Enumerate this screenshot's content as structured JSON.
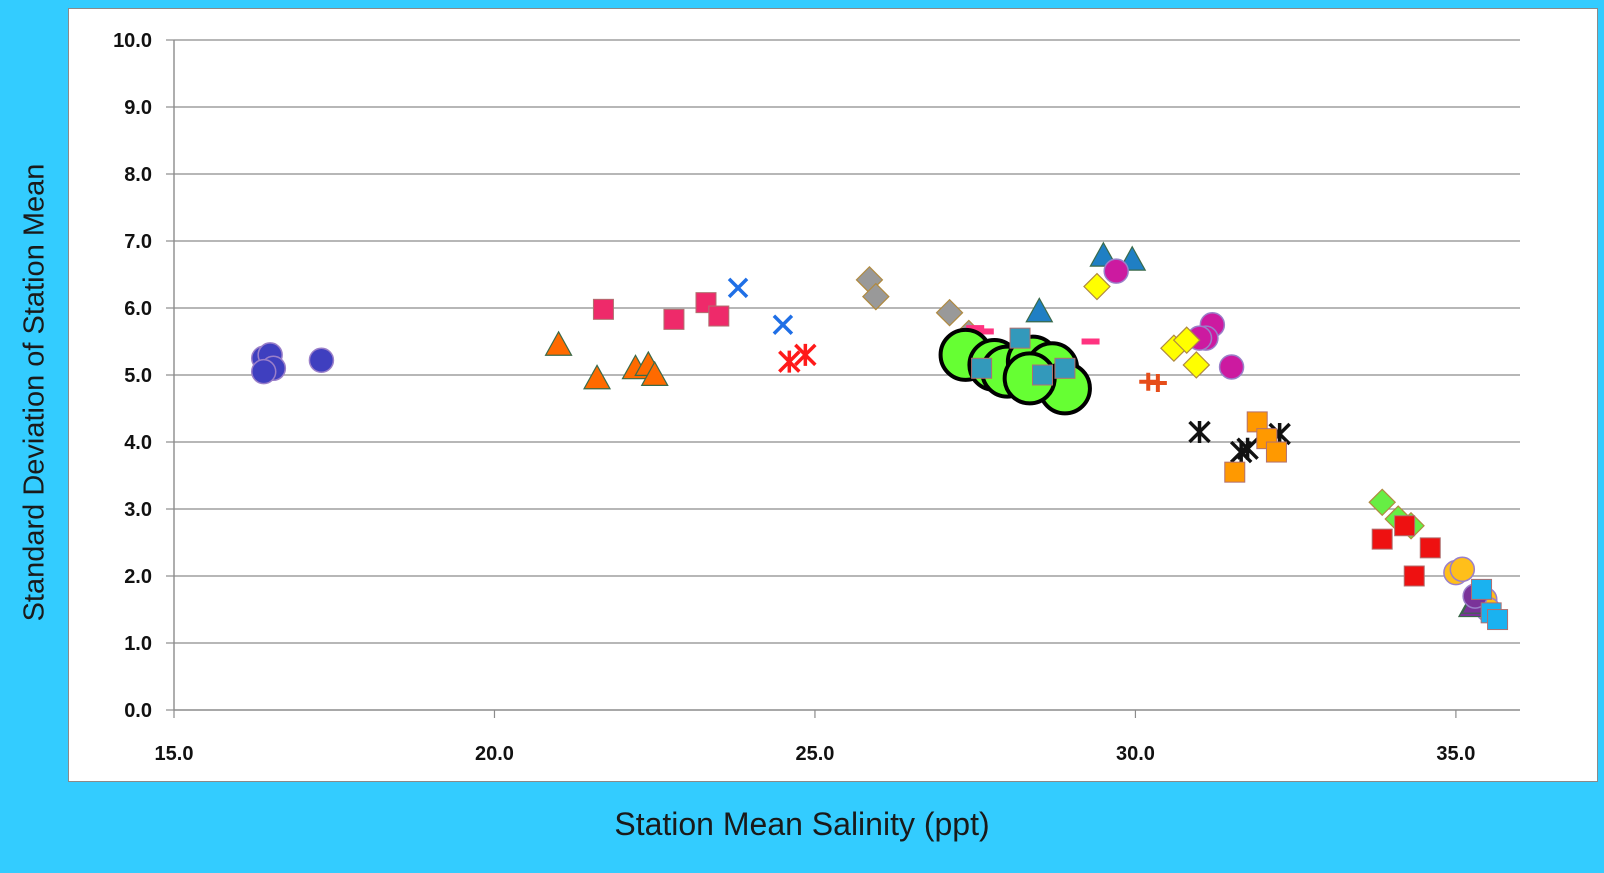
{
  "chart_data": {
    "type": "scatter",
    "title": "",
    "xlabel": "Station Mean Salinity (ppt)",
    "ylabel": "Standard Deviation of Station Mean",
    "xlim": [
      15,
      36
    ],
    "ylim": [
      0,
      10
    ],
    "x_ticks": [
      "15.0",
      "20.0",
      "25.0",
      "30.0",
      "35.0"
    ],
    "y_ticks": [
      "0.0",
      "1.0",
      "2.0",
      "3.0",
      "4.0",
      "5.0",
      "6.0",
      "7.0",
      "8.0",
      "9.0",
      "10.0"
    ],
    "grid": "horizontal",
    "legend": "none",
    "series": [
      {
        "marker": "circle",
        "color": "#3f3fbf",
        "points": [
          [
            16.4,
            5.25
          ],
          [
            16.5,
            5.3
          ],
          [
            16.55,
            5.1
          ],
          [
            16.4,
            5.05
          ],
          [
            17.3,
            5.22
          ]
        ]
      },
      {
        "marker": "triangle",
        "color": "#ff6a00",
        "points": [
          [
            21.0,
            5.45
          ],
          [
            21.6,
            4.95
          ],
          [
            22.2,
            5.1
          ],
          [
            22.4,
            5.15
          ],
          [
            22.5,
            5.0
          ]
        ]
      },
      {
        "marker": "square",
        "color": "#ee2a6a",
        "points": [
          [
            21.7,
            5.98
          ],
          [
            22.8,
            5.83
          ],
          [
            23.3,
            6.08
          ],
          [
            23.5,
            5.88
          ]
        ]
      },
      {
        "marker": "x",
        "color": "#1f6fe6",
        "points": [
          [
            23.8,
            6.3
          ],
          [
            24.5,
            5.75
          ]
        ]
      },
      {
        "marker": "asterisk",
        "color": "#ff1a1a",
        "points": [
          [
            24.6,
            5.2
          ],
          [
            24.85,
            5.3
          ]
        ]
      },
      {
        "marker": "diamond",
        "color": "#999999",
        "points": [
          [
            25.85,
            6.42
          ],
          [
            25.95,
            6.17
          ],
          [
            27.1,
            5.93
          ],
          [
            27.4,
            5.62
          ]
        ]
      },
      {
        "marker": "dash",
        "color": "#ff3380",
        "points": [
          [
            27.5,
            5.7
          ],
          [
            27.65,
            5.65
          ],
          [
            28.3,
            5.55
          ],
          [
            29.3,
            5.5
          ]
        ]
      },
      {
        "marker": "circle-large",
        "color": "#66ff33",
        "points": [
          [
            27.35,
            5.3
          ],
          [
            27.8,
            5.15
          ],
          [
            28.0,
            5.05
          ],
          [
            28.4,
            5.2
          ],
          [
            28.7,
            5.1
          ],
          [
            28.9,
            4.8
          ],
          [
            28.35,
            4.95
          ]
        ]
      },
      {
        "marker": "square",
        "color": "#3399bb",
        "points": [
          [
            27.6,
            5.1
          ],
          [
            28.2,
            5.55
          ],
          [
            28.55,
            5.0
          ],
          [
            28.9,
            5.1
          ]
        ]
      },
      {
        "marker": "triangle",
        "color": "#1f7fc4",
        "points": [
          [
            28.5,
            5.95
          ],
          [
            29.5,
            6.78
          ],
          [
            29.95,
            6.72
          ]
        ]
      },
      {
        "marker": "circle",
        "color": "#cc1aa0",
        "points": [
          [
            29.7,
            6.55
          ],
          [
            31.2,
            5.75
          ],
          [
            31.1,
            5.55
          ],
          [
            31.0,
            5.55
          ],
          [
            31.5,
            5.12
          ]
        ]
      },
      {
        "marker": "diamond",
        "color": "#ffff00",
        "points": [
          [
            29.4,
            6.32
          ],
          [
            30.6,
            5.4
          ],
          [
            30.8,
            5.52
          ],
          [
            30.95,
            5.15
          ]
        ]
      },
      {
        "marker": "plus",
        "color": "#e64d1a",
        "points": [
          [
            30.2,
            4.9
          ],
          [
            30.35,
            4.88
          ]
        ]
      },
      {
        "marker": "asterisk",
        "color": "#111111",
        "points": [
          [
            31.0,
            4.15
          ],
          [
            31.65,
            3.85
          ],
          [
            31.75,
            3.9
          ],
          [
            32.25,
            4.12
          ]
        ]
      },
      {
        "marker": "square",
        "color": "#ff9900",
        "points": [
          [
            31.55,
            3.55
          ],
          [
            31.9,
            4.3
          ],
          [
            32.05,
            4.05
          ],
          [
            32.2,
            3.85
          ]
        ]
      },
      {
        "marker": "diamond",
        "color": "#66ee44",
        "points": [
          [
            33.85,
            3.1
          ],
          [
            34.1,
            2.85
          ],
          [
            34.3,
            2.75
          ]
        ]
      },
      {
        "marker": "square",
        "color": "#ee1111",
        "points": [
          [
            33.85,
            2.55
          ],
          [
            34.2,
            2.75
          ],
          [
            34.35,
            2.0
          ],
          [
            34.6,
            2.42
          ]
        ]
      },
      {
        "marker": "circle",
        "color": "#ffbf1a",
        "points": [
          [
            35.0,
            2.05
          ],
          [
            35.1,
            2.1
          ],
          [
            35.45,
            1.65
          ],
          [
            35.5,
            1.5
          ]
        ]
      },
      {
        "marker": "triangle",
        "color": "#7a3399",
        "points": [
          [
            35.25,
            1.55
          ],
          [
            35.3,
            1.6
          ]
        ]
      },
      {
        "marker": "circle",
        "color": "#7a3399",
        "points": [
          [
            35.3,
            1.7
          ]
        ]
      },
      {
        "marker": "square",
        "color": "#1ab2f0",
        "points": [
          [
            35.4,
            1.8
          ],
          [
            35.55,
            1.45
          ],
          [
            35.65,
            1.35
          ]
        ]
      }
    ]
  }
}
